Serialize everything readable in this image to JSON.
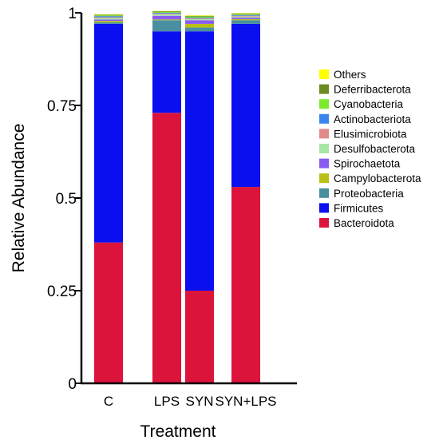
{
  "chart_data": {
    "type": "bar",
    "stacked": true,
    "xlabel": "Treatment",
    "ylabel": "Relative Abundance",
    "ylim": [
      0,
      1
    ],
    "yticks": [
      "0",
      "0.25",
      "0.5",
      "0.75",
      "1"
    ],
    "ytick_values": [
      0,
      0.25,
      0.5,
      0.75,
      1
    ],
    "categories": [
      "C",
      "LPS",
      "SYN",
      "SYN+LPS"
    ],
    "legend_position": "right",
    "series": [
      {
        "name": "Bacteroidota",
        "color": "#dc143c",
        "values": [
          0.38,
          0.73,
          0.25,
          0.53
        ]
      },
      {
        "name": "Firmicutes",
        "color": "#0a0ff0",
        "values": [
          0.59,
          0.22,
          0.7,
          0.44
        ]
      },
      {
        "name": "Proteobacteria",
        "color": "#4a8fa0",
        "values": [
          0.004,
          0.03,
          0.01,
          0.01
        ]
      },
      {
        "name": "Campylobacterota",
        "color": "#b8c016",
        "values": [
          0.004,
          0.002,
          0.01,
          0.003
        ]
      },
      {
        "name": "Spirochaetota",
        "color": "#8a5cf0",
        "values": [
          0.004,
          0.01,
          0.01,
          0.004
        ]
      },
      {
        "name": "Desulfobacterota",
        "color": "#a8e6a8",
        "values": [
          0.004,
          0.004,
          0.003,
          0.003
        ]
      },
      {
        "name": "Elusimicrobiota",
        "color": "#e08a8a",
        "values": [
          0.002,
          0.002,
          0.002,
          0.002
        ]
      },
      {
        "name": "Actinobacteriota",
        "color": "#3a86ee",
        "values": [
          0.003,
          0.002,
          0.002,
          0.002
        ]
      },
      {
        "name": "Cyanobacteria",
        "color": "#7cea2a",
        "values": [
          0.002,
          0.002,
          0.003,
          0.002
        ]
      },
      {
        "name": "Deferribacterota",
        "color": "#6e8a22",
        "values": [
          0.002,
          0.002,
          0.002,
          0.002
        ]
      },
      {
        "name": "Others",
        "color": "#ffff00",
        "values": [
          0.001,
          0.001,
          0.001,
          0.001
        ]
      }
    ],
    "legend_order": [
      "Others",
      "Deferribacterota",
      "Cyanobacteria",
      "Actinobacteriota",
      "Elusimicrobiota",
      "Desulfobacterota",
      "Spirochaetota",
      "Campylobacterota",
      "Proteobacteria",
      "Firmicutes",
      "Bacteroidota"
    ]
  }
}
